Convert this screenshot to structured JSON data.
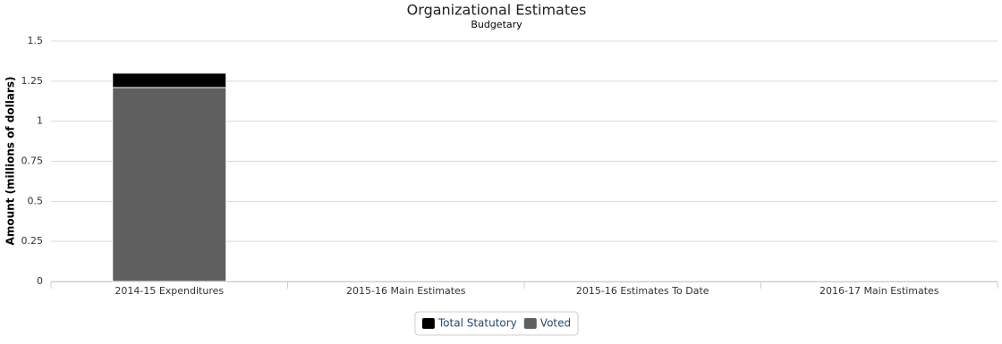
{
  "chart_data": {
    "type": "stacked_bar",
    "title": "Organizational Estimates",
    "subtitle": "Budgetary",
    "y_label": "Amount (millions of dollars)",
    "categories": [
      "2014-15 Expenditures",
      "2015-16 Main Estimates",
      "2015-16 Estimates To Date",
      "2016-17 Main Estimates"
    ],
    "series": [
      {
        "name": "Total Statutory",
        "color": "#000000",
        "values": [
          0.09,
          0,
          0,
          0
        ]
      },
      {
        "name": "Voted",
        "color": "#5f5f5f",
        "values": [
          1.21,
          0,
          0,
          0
        ]
      }
    ],
    "ylim": [
      0,
      1.5
    ],
    "yticks": [
      0,
      0.25,
      0.5,
      0.75,
      1,
      1.25,
      1.5
    ],
    "grid": true
  }
}
